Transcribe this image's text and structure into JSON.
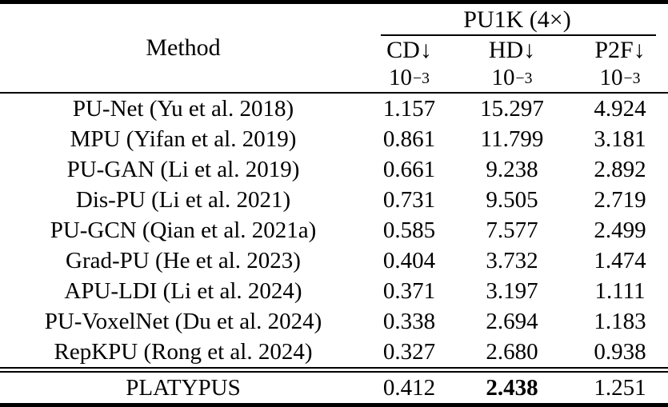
{
  "table": {
    "method_header": "Method",
    "group_header": "PU1K (4×)",
    "columns": [
      {
        "label": "CD↓",
        "unit_base": "10",
        "unit_exp": "−3"
      },
      {
        "label": "HD↓",
        "unit_base": "10",
        "unit_exp": "−3"
      },
      {
        "label": "P2F↓",
        "unit_base": "10",
        "unit_exp": "−3"
      }
    ],
    "rows": [
      {
        "method": "PU-Net (Yu et al. 2018)",
        "cd": "1.157",
        "hd": "15.297",
        "p2f": "4.924"
      },
      {
        "method": "MPU (Yifan et al. 2019)",
        "cd": "0.861",
        "hd": "11.799",
        "p2f": "3.181"
      },
      {
        "method": "PU-GAN (Li et al. 2019)",
        "cd": "0.661",
        "hd": "9.238",
        "p2f": "2.892"
      },
      {
        "method": "Dis-PU (Li et al. 2021)",
        "cd": "0.731",
        "hd": "9.505",
        "p2f": "2.719"
      },
      {
        "method": "PU-GCN (Qian et al. 2021a)",
        "cd": "0.585",
        "hd": "7.577",
        "p2f": "2.499"
      },
      {
        "method": "Grad-PU (He et al. 2023)",
        "cd": "0.404",
        "hd": "3.732",
        "p2f": "1.474"
      },
      {
        "method": "APU-LDI (Li et al. 2024)",
        "cd": "0.371",
        "hd": "3.197",
        "p2f": "1.111"
      },
      {
        "method": "PU-VoxelNet (Du et al. 2024)",
        "cd": "0.338",
        "hd": "2.694",
        "p2f": "1.183"
      },
      {
        "method": "RepKPU (Rong et al. 2024)",
        "cd": "0.327",
        "hd": "2.680",
        "p2f": "0.938"
      }
    ],
    "final_row": {
      "method": "PLATYPUS",
      "cd": "0.412",
      "hd": "2.438",
      "p2f": "1.251"
    }
  }
}
